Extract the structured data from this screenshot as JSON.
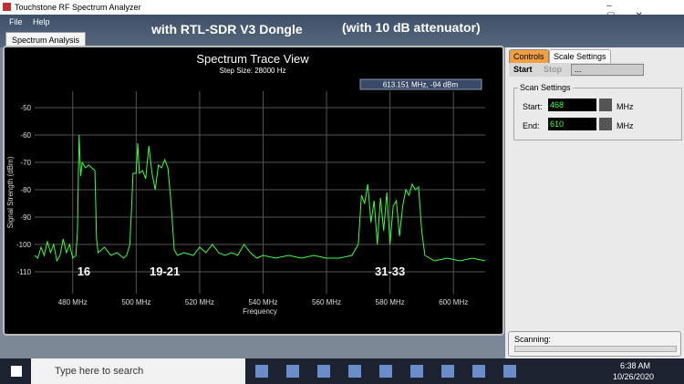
{
  "window": {
    "title": "Touchstone RF Spectrum Analyzer",
    "menu": [
      "File",
      "Help"
    ],
    "tab": "Spectrum Analysis",
    "overlay": [
      "with RTL-SDR V3 Dongle",
      "(with 10 dB attenuator)"
    ]
  },
  "chart_data": {
    "type": "line",
    "title": "Spectrum Trace View",
    "subtitle": "Step Size: 28000 Hz",
    "readout": "613.151 MHz,  -94 dBm",
    "x_label": "Frequency",
    "y_label": "Signal Strength (dBm)",
    "xlim": [
      468,
      610
    ],
    "ylim": [
      -118,
      -44
    ],
    "xticks": [
      {
        "value": 480,
        "label": "480 MHz"
      },
      {
        "value": 500,
        "label": "500 MHz"
      },
      {
        "value": 520,
        "label": "520 MHz"
      },
      {
        "value": 540,
        "label": "540 MHz"
      },
      {
        "value": 560,
        "label": "560 MHz"
      },
      {
        "value": 580,
        "label": "580 MHz"
      },
      {
        "value": 600,
        "label": "600 MHz"
      }
    ],
    "yticks": [
      -50,
      -60,
      -70,
      -80,
      -90,
      -100,
      -110
    ],
    "grid": true,
    "annotations": [
      {
        "text": "16",
        "x": 483.5
      },
      {
        "text": "19-21",
        "x": 509
      },
      {
        "text": "31-33",
        "x": 580
      }
    ],
    "series": [
      {
        "color": "#3cff3c",
        "x": [
          468,
          469,
          470,
          471,
          472,
          473,
          474,
          475,
          476,
          477,
          478,
          479,
          480,
          481,
          481.5,
          482,
          482.5,
          483,
          484,
          485,
          486,
          487,
          487.5,
          488,
          490,
          492,
          494,
          496,
          497,
          498,
          498.5,
          499,
          500,
          500.5,
          501,
          502,
          503,
          504,
          505,
          506,
          507,
          508,
          509,
          510,
          511,
          512,
          513,
          515,
          518,
          520,
          522,
          524,
          526,
          528,
          530,
          532,
          534,
          536,
          538,
          540,
          544,
          548,
          552,
          556,
          560,
          564,
          568,
          570,
          571,
          572,
          573,
          574,
          575,
          576,
          577,
          578,
          579,
          580,
          581,
          582,
          583,
          584,
          585,
          586,
          587,
          588,
          589,
          590,
          591,
          594,
          598,
          602,
          606,
          610
        ],
        "values": [
          -104,
          -105,
          -101,
          -104,
          -99,
          -103,
          -100,
          -106,
          -104,
          -98,
          -103,
          -100,
          -105,
          -104,
          -95,
          -60,
          -75,
          -70,
          -72,
          -71,
          -72,
          -73,
          -98,
          -103,
          -101,
          -104,
          -103,
          -105,
          -104,
          -100,
          -88,
          -74,
          -74,
          -63,
          -74,
          -73,
          -76,
          -64,
          -74,
          -80,
          -71,
          -72,
          -69,
          -72,
          -85,
          -102,
          -104,
          -103,
          -104,
          -101,
          -103,
          -100,
          -103,
          -104,
          -103,
          -104,
          -100,
          -103,
          -105,
          -104,
          -105,
          -104,
          -105,
          -104,
          -105,
          -105,
          -104,
          -100,
          -82,
          -85,
          -78,
          -92,
          -84,
          -100,
          -83,
          -95,
          -81,
          -100,
          -86,
          -84,
          -97,
          -86,
          -80,
          -82,
          -78,
          -80,
          -79,
          -95,
          -104,
          -106,
          -105,
          -106,
          -105,
          -106
        ]
      }
    ]
  },
  "panel": {
    "tabs": [
      "Controls",
      "Scale Settings"
    ],
    "buttons": [
      "Start",
      "Stop"
    ],
    "dropdown": "...",
    "group": "Scan Settings",
    "start_label": "Start:",
    "start_value": "468",
    "end_label": "End:",
    "end_value": "610",
    "unit": "MHz",
    "status": "Scanning:"
  },
  "taskbar": {
    "search": "Type here to search",
    "time": "6:38 AM",
    "date": "10/26/2020"
  }
}
